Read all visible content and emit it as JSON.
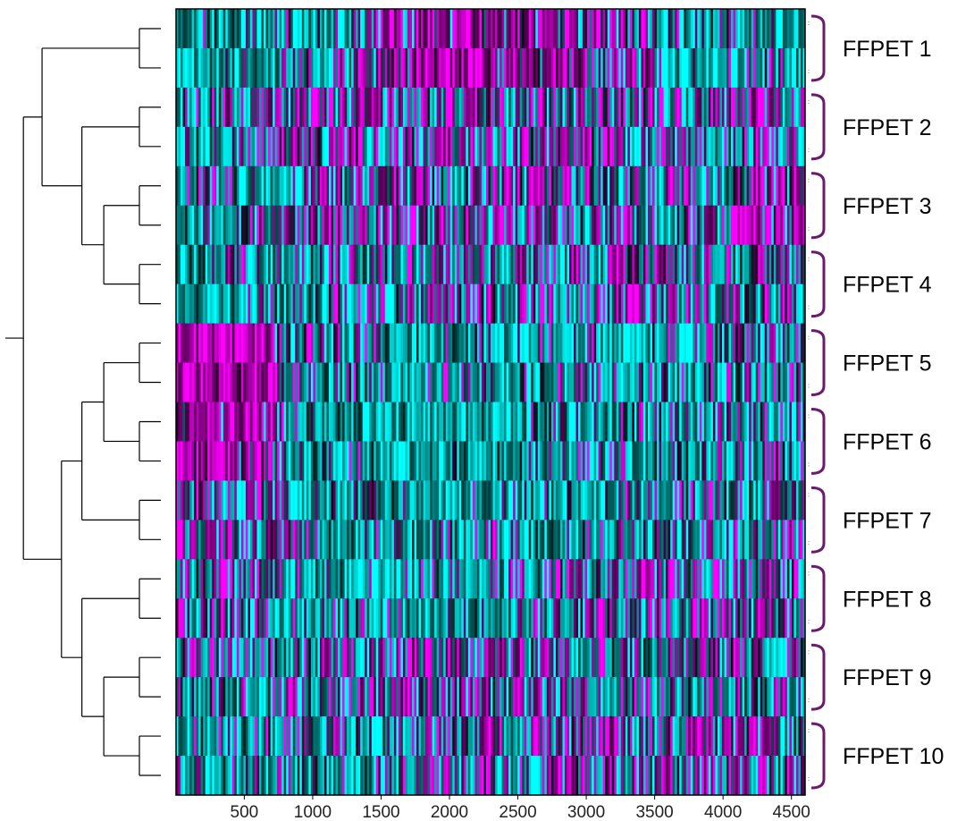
{
  "chart_data": {
    "type": "heatmap",
    "title": "",
    "xlabel": "",
    "ylabel": "",
    "xlim": [
      1,
      4600
    ],
    "x_ticks": [
      500,
      1000,
      1500,
      2000,
      2500,
      3000,
      3500,
      4000,
      4500
    ],
    "x_tick_labels": [
      "500",
      "1000",
      "1500",
      "2000",
      "2500",
      "3000",
      "3500",
      "4000",
      "4500"
    ],
    "rows_per_group": 2,
    "groups": [
      {
        "label": "FFPET 1",
        "profile": [
          [
            0,
            0.0
          ],
          [
            1100,
            0.2
          ],
          [
            1600,
            0.95
          ],
          [
            2800,
            0.85
          ],
          [
            3450,
            0.55
          ],
          [
            3550,
            0.1
          ],
          [
            4600,
            0.1
          ]
        ]
      },
      {
        "label": "FFPET 2",
        "profile": [
          [
            0,
            0.1
          ],
          [
            700,
            0.45
          ],
          [
            1300,
            0.7
          ],
          [
            2000,
            0.5
          ],
          [
            3000,
            0.45
          ],
          [
            4600,
            0.35
          ]
        ]
      },
      {
        "label": "FFPET 3",
        "profile": [
          [
            0,
            0.1
          ],
          [
            900,
            0.45
          ],
          [
            2000,
            0.6
          ],
          [
            3000,
            0.55
          ],
          [
            4000,
            0.5
          ],
          [
            4300,
            0.9
          ],
          [
            4600,
            0.9
          ]
        ]
      },
      {
        "label": "FFPET 4",
        "profile": [
          [
            0,
            0.0
          ],
          [
            800,
            0.3
          ],
          [
            2000,
            0.5
          ],
          [
            3000,
            0.45
          ],
          [
            4600,
            0.45
          ]
        ]
      },
      {
        "label": "FFPET 5",
        "profile": [
          [
            0,
            1.0
          ],
          [
            700,
            1.0
          ],
          [
            800,
            0.3
          ],
          [
            1400,
            0.2
          ],
          [
            2500,
            0.15
          ],
          [
            4000,
            0.25
          ],
          [
            4600,
            0.4
          ]
        ]
      },
      {
        "label": "FFPET 6",
        "profile": [
          [
            0,
            0.95
          ],
          [
            650,
            0.9
          ],
          [
            800,
            0.25
          ],
          [
            1100,
            0.05
          ],
          [
            2500,
            0.05
          ],
          [
            3500,
            0.3
          ],
          [
            4600,
            0.3
          ]
        ]
      },
      {
        "label": "FFPET 7",
        "profile": [
          [
            0,
            0.65
          ],
          [
            800,
            0.5
          ],
          [
            900,
            0.15
          ],
          [
            3000,
            0.25
          ],
          [
            4600,
            0.4
          ]
        ]
      },
      {
        "label": "FFPET 8",
        "profile": [
          [
            0,
            0.5
          ],
          [
            750,
            0.4
          ],
          [
            1000,
            0.1
          ],
          [
            2500,
            0.2
          ],
          [
            3300,
            0.55
          ],
          [
            4000,
            0.5
          ],
          [
            4600,
            0.35
          ]
        ]
      },
      {
        "label": "FFPET 9",
        "profile": [
          [
            0,
            0.35
          ],
          [
            700,
            0.3
          ],
          [
            1300,
            0.45
          ],
          [
            2500,
            0.55
          ],
          [
            3500,
            0.35
          ],
          [
            4600,
            0.3
          ]
        ]
      },
      {
        "label": "FFPET 10",
        "profile": [
          [
            0,
            0.15
          ],
          [
            1000,
            0.2
          ],
          [
            2500,
            0.35
          ],
          [
            3500,
            0.55
          ],
          [
            3900,
            0.7
          ],
          [
            4600,
            0.45
          ]
        ]
      }
    ],
    "color_scale": {
      "low": "#00ffff",
      "mid": "#000000",
      "high": "#ff00ff"
    },
    "bracket_color": "#6a1b6e",
    "dendrogram": {
      "leaf_order": [
        0,
        1,
        2,
        3,
        4,
        5,
        6,
        7,
        8,
        9,
        10,
        11,
        12,
        13,
        14,
        15,
        16,
        17,
        18,
        19
      ],
      "tree": [
        [
          [
            [
              0,
              1
            ],
            [
              [
                [
                  2,
                  3
                ],
                [
                  [
                    4,
                    5
                  ],
                  [
                    6,
                    7
                  ]
                ]
              ]
            ]
          ],
          [
            [
              [
                [
                  8,
                  9
                ],
                [
                  10,
                  11
                ]
              ],
              [
                12,
                13
              ]
            ],
            [
              [
                14,
                15
              ],
              [
                [
                  16,
                  17
                ],
                [
                  18,
                  19
                ]
              ]
            ]
          ]
        ]
      ]
    }
  }
}
